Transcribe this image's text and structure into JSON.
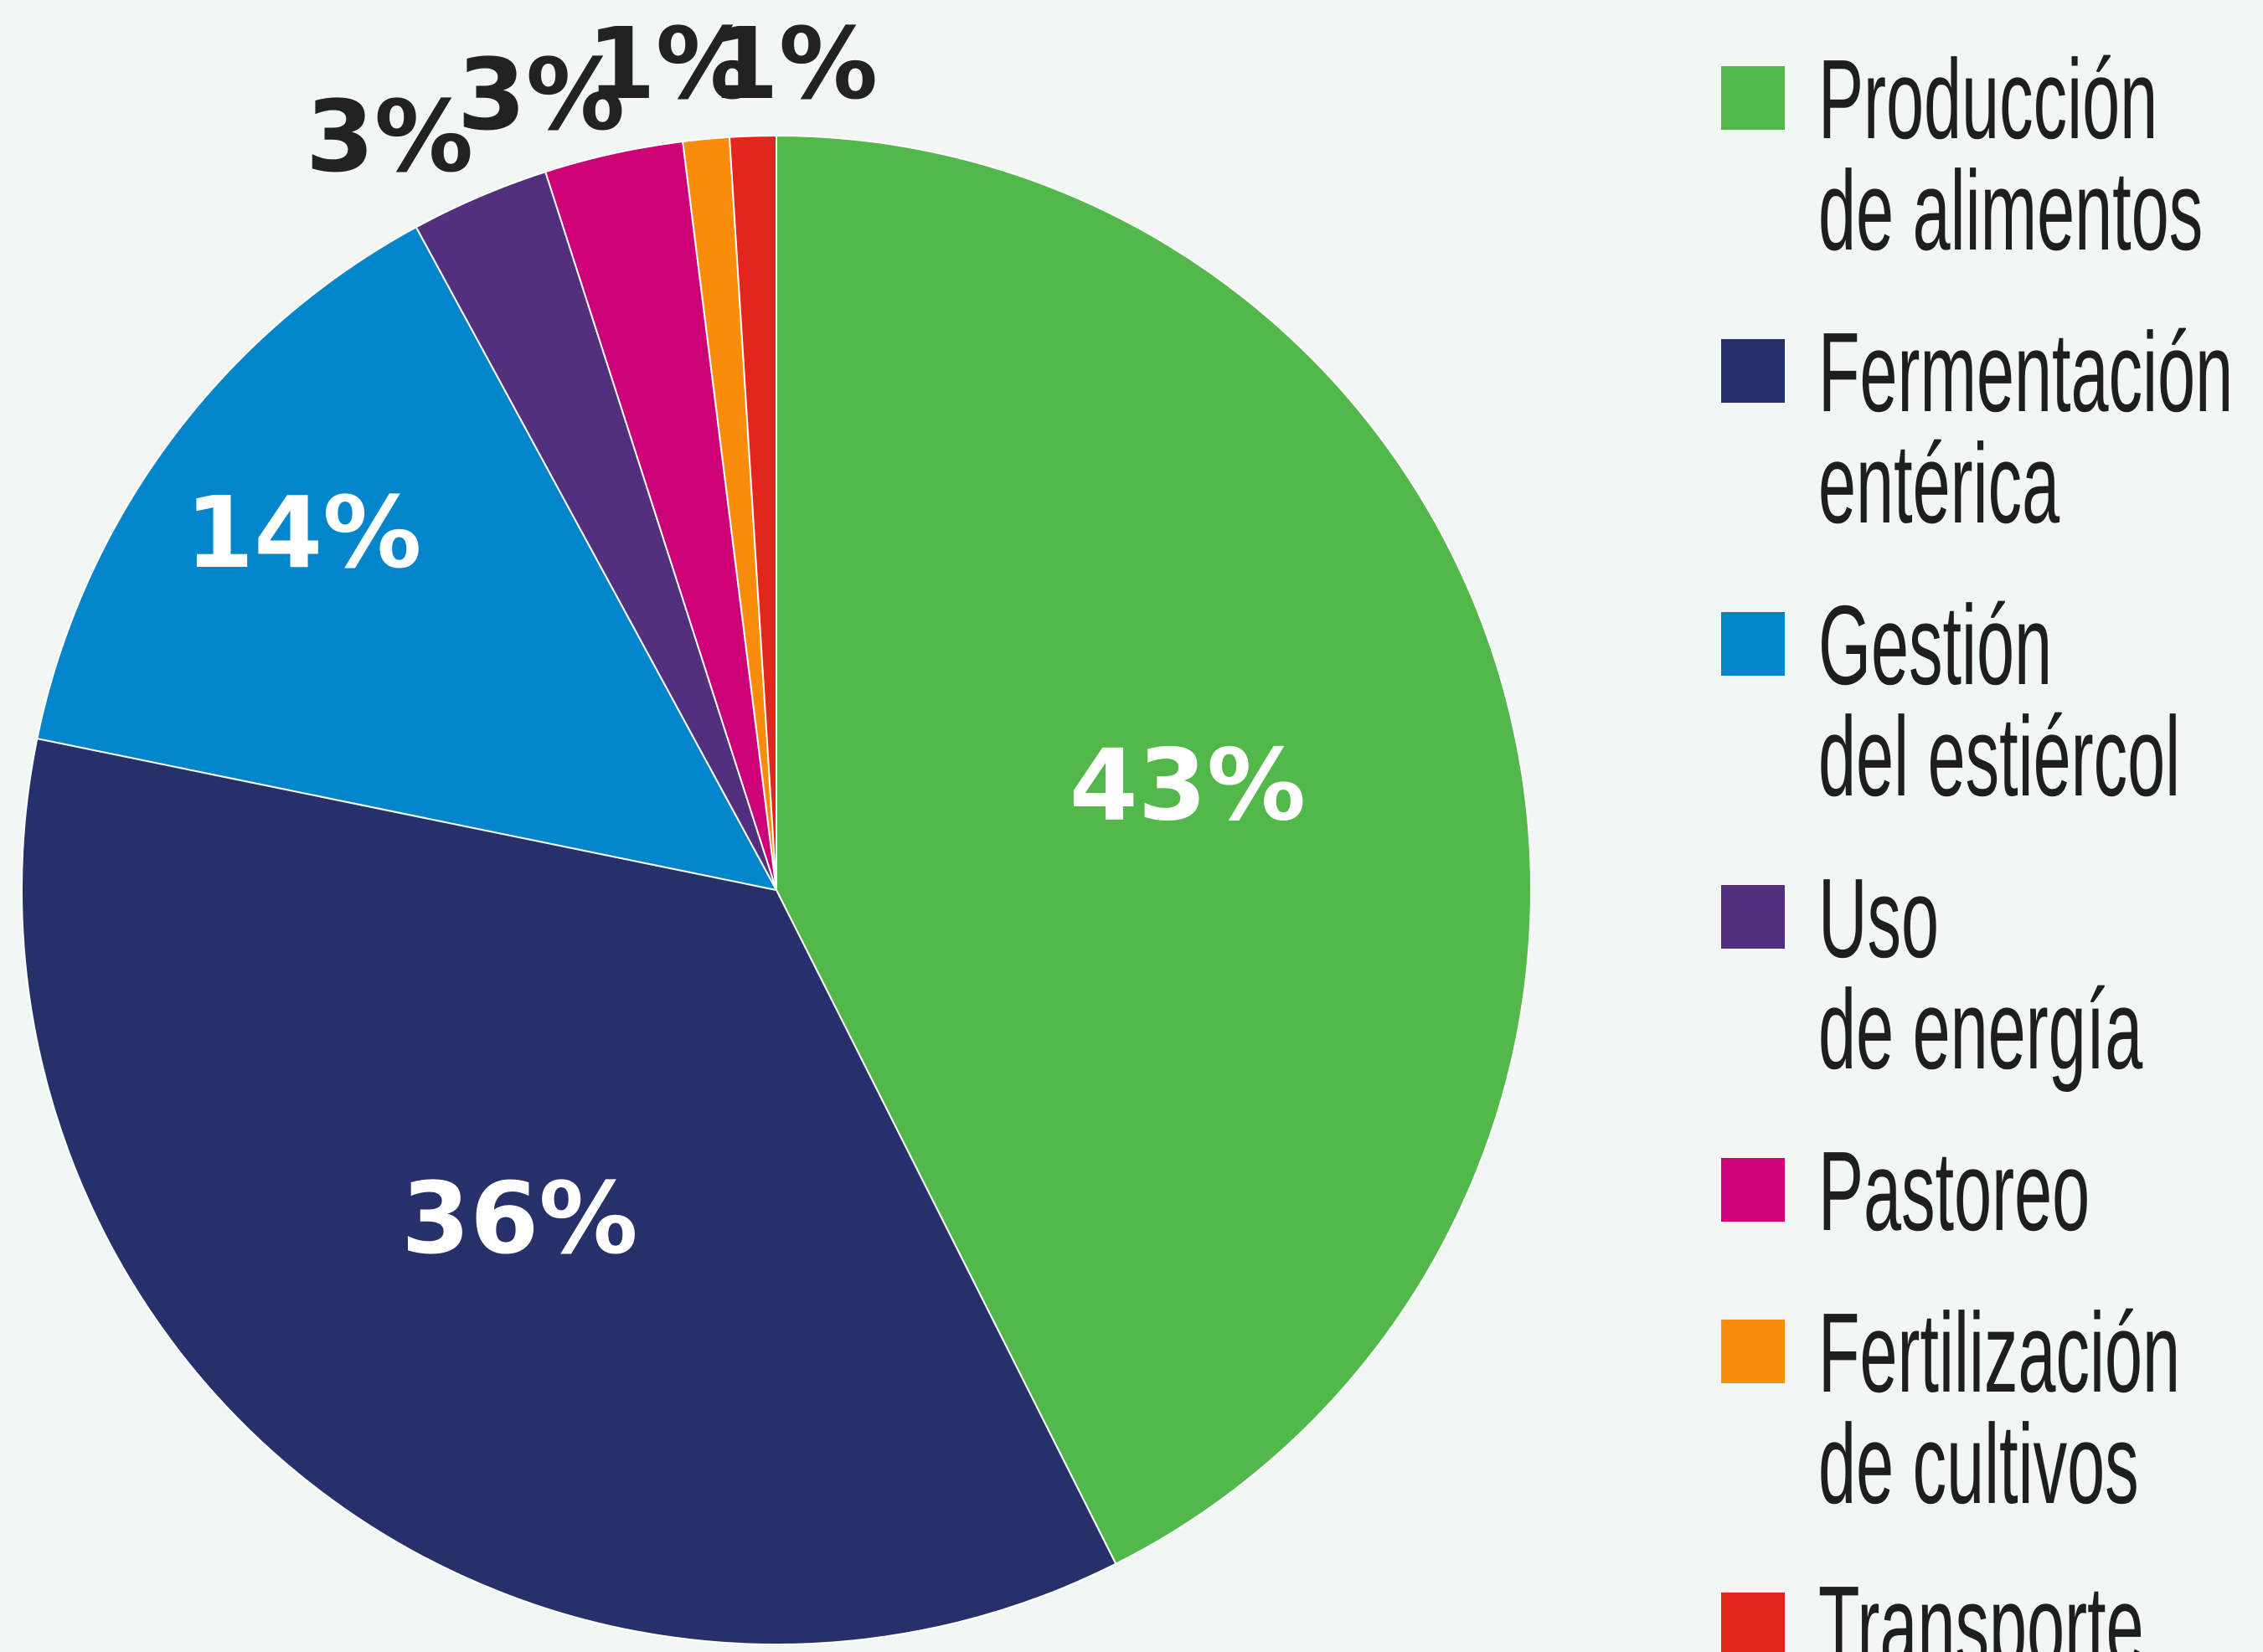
{
  "chart_data": {
    "type": "pie",
    "categories": [
      "Producción\nde alimentos",
      "Fermentación\nentérica",
      "Gestión\ndel estiércol",
      "Uso\nde energía",
      "Pastoreo",
      "Fertilización\nde cultivos",
      "Transporte"
    ],
    "values": [
      43,
      36,
      14,
      3,
      3,
      1,
      1
    ],
    "value_labels": [
      "43%",
      "36%",
      "14%",
      "3%",
      "3%",
      "1%",
      "1%"
    ],
    "colors": [
      "#52b84a",
      "#27306b",
      "#0385cb",
      "#52307e",
      "#cc0077",
      "#f98c0b",
      "#e3261d"
    ]
  }
}
